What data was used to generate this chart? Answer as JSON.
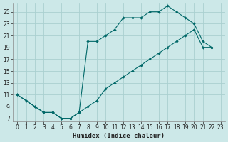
{
  "xlabel": "Humidex (Indice chaleur)",
  "bg_color": "#cce8e8",
  "grid_color": "#aad0d0",
  "line_color": "#006868",
  "xlim": [
    -0.5,
    23.5
  ],
  "ylim": [
    6.5,
    26.5
  ],
  "xticks": [
    0,
    1,
    2,
    3,
    4,
    5,
    6,
    7,
    8,
    9,
    10,
    11,
    12,
    13,
    14,
    15,
    16,
    17,
    18,
    19,
    20,
    21,
    22,
    23
  ],
  "yticks": [
    7,
    9,
    11,
    13,
    15,
    17,
    19,
    21,
    23,
    25
  ],
  "line1_x": [
    0,
    1,
    2,
    3,
    4,
    5,
    6,
    7,
    8,
    9,
    10,
    11,
    12,
    13,
    14,
    15,
    16,
    17,
    18,
    19,
    20,
    21,
    22
  ],
  "line1_y": [
    11,
    10,
    9,
    8,
    8,
    7,
    7,
    8,
    20,
    20,
    21,
    22,
    24,
    24,
    24,
    25,
    25,
    26,
    25,
    24,
    23,
    20,
    19
  ],
  "line2_x": [
    0,
    2,
    3,
    4,
    5,
    6,
    7,
    8,
    9,
    10,
    11,
    12,
    13,
    14,
    15,
    16,
    17,
    18,
    19,
    20,
    21,
    22
  ],
  "line2_y": [
    11,
    9,
    8,
    8,
    7,
    7,
    8,
    9,
    10,
    12,
    13,
    14,
    15,
    16,
    17,
    18,
    19,
    20,
    21,
    22,
    19,
    19
  ],
  "tick_fontsize": 5.5,
  "xlabel_fontsize": 6.5
}
